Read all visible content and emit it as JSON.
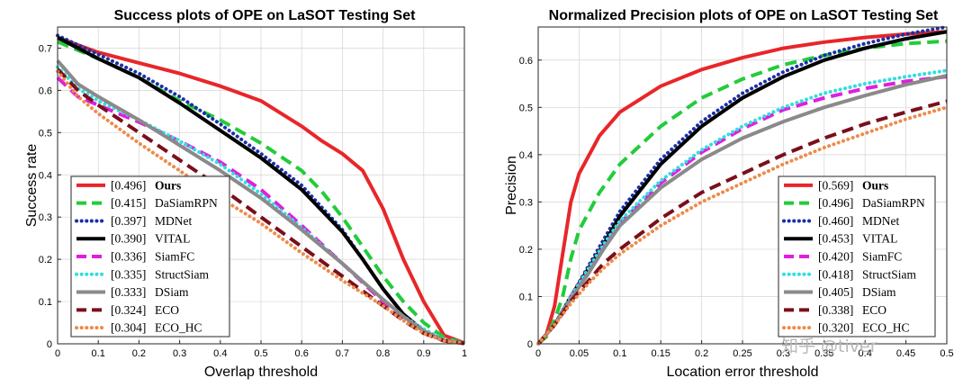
{
  "chart_data": [
    {
      "type": "line",
      "title": "Success plots of OPE on LaSOT Testing Set",
      "xlabel": "Overlap threshold",
      "ylabel": "Success rate",
      "xlim": [
        0,
        1
      ],
      "ylim": [
        0,
        0.75
      ],
      "xticks": [
        0,
        0.1,
        0.2,
        0.3,
        0.4,
        0.5,
        0.6,
        0.7,
        0.8,
        0.9,
        1
      ],
      "xtick_labels": [
        "0",
        "0.1",
        "0.2",
        "0.3",
        "0.4",
        "0.5",
        "0.6",
        "0.7",
        "0.8",
        "0.9",
        "1"
      ],
      "yticks": [
        0,
        0.1,
        0.2,
        0.3,
        0.4,
        0.5,
        0.6,
        0.7
      ],
      "ytick_labels": [
        "0",
        "0.1",
        "0.2",
        "0.3",
        "0.4",
        "0.5",
        "0.6",
        "0.7"
      ],
      "grid": true,
      "legend_position": "bottom-left",
      "series": [
        {
          "name": "Ours",
          "score": "[0.496]",
          "bold": true,
          "color": "#e8262a",
          "dash": "solid",
          "x": [
            0,
            0.1,
            0.2,
            0.3,
            0.4,
            0.5,
            0.6,
            0.65,
            0.7,
            0.75,
            0.8,
            0.85,
            0.9,
            0.95,
            1
          ],
          "y": [
            0.725,
            0.69,
            0.665,
            0.64,
            0.61,
            0.575,
            0.515,
            0.48,
            0.45,
            0.41,
            0.32,
            0.2,
            0.1,
            0.02,
            0.002
          ]
        },
        {
          "name": "DaSiamRPN",
          "score": "[0.415]",
          "bold": false,
          "color": "#22cc3a",
          "dash": "dash",
          "x": [
            0,
            0.1,
            0.2,
            0.3,
            0.4,
            0.5,
            0.6,
            0.65,
            0.7,
            0.75,
            0.8,
            0.85,
            0.9,
            0.95,
            1
          ],
          "y": [
            0.715,
            0.675,
            0.63,
            0.575,
            0.53,
            0.475,
            0.41,
            0.36,
            0.3,
            0.23,
            0.16,
            0.1,
            0.05,
            0.015,
            0.001
          ]
        },
        {
          "name": "MDNet",
          "score": "[0.397]",
          "bold": false,
          "color": "#1a2fa8",
          "dash": "dot",
          "x": [
            0,
            0.1,
            0.2,
            0.3,
            0.4,
            0.5,
            0.6,
            0.7,
            0.75,
            0.8,
            0.85,
            0.9,
            0.95,
            1
          ],
          "y": [
            0.73,
            0.685,
            0.64,
            0.585,
            0.52,
            0.45,
            0.375,
            0.27,
            0.2,
            0.13,
            0.07,
            0.03,
            0.007,
            0.001
          ]
        },
        {
          "name": "VITAL",
          "score": "[0.390]",
          "bold": false,
          "color": "#000000",
          "dash": "solid",
          "x": [
            0,
            0.1,
            0.2,
            0.3,
            0.4,
            0.5,
            0.6,
            0.7,
            0.75,
            0.8,
            0.85,
            0.9,
            0.95,
            1
          ],
          "y": [
            0.725,
            0.675,
            0.63,
            0.57,
            0.505,
            0.44,
            0.365,
            0.265,
            0.2,
            0.13,
            0.07,
            0.03,
            0.007,
            0.001
          ]
        },
        {
          "name": "SiamFC",
          "score": "[0.336]",
          "bold": false,
          "color": "#e01ee0",
          "dash": "dash",
          "x": [
            0,
            0.05,
            0.1,
            0.2,
            0.3,
            0.4,
            0.5,
            0.6,
            0.7,
            0.8,
            0.85,
            0.9,
            0.95,
            1
          ],
          "y": [
            0.63,
            0.585,
            0.565,
            0.525,
            0.48,
            0.43,
            0.365,
            0.28,
            0.19,
            0.1,
            0.06,
            0.03,
            0.008,
            0.001
          ]
        },
        {
          "name": "StructSiam",
          "score": "[0.335]",
          "bold": false,
          "color": "#33dede",
          "dash": "dot",
          "x": [
            0,
            0.05,
            0.1,
            0.2,
            0.3,
            0.4,
            0.5,
            0.6,
            0.7,
            0.8,
            0.85,
            0.9,
            0.95,
            1
          ],
          "y": [
            0.655,
            0.605,
            0.575,
            0.53,
            0.48,
            0.425,
            0.355,
            0.275,
            0.19,
            0.105,
            0.065,
            0.035,
            0.01,
            0.001
          ]
        },
        {
          "name": "DSiam",
          "score": "[0.333]",
          "bold": false,
          "color": "#8a8a8a",
          "dash": "solid",
          "x": [
            0,
            0.05,
            0.1,
            0.2,
            0.3,
            0.4,
            0.5,
            0.6,
            0.7,
            0.8,
            0.85,
            0.9,
            0.95,
            1
          ],
          "y": [
            0.67,
            0.615,
            0.585,
            0.53,
            0.47,
            0.41,
            0.345,
            0.27,
            0.19,
            0.105,
            0.065,
            0.03,
            0.008,
            0.001
          ]
        },
        {
          "name": "ECO",
          "score": "[0.324]",
          "bold": false,
          "color": "#7a0f1c",
          "dash": "dash",
          "x": [
            0,
            0.05,
            0.1,
            0.2,
            0.3,
            0.4,
            0.5,
            0.6,
            0.7,
            0.8,
            0.85,
            0.9,
            0.95,
            1
          ],
          "y": [
            0.65,
            0.6,
            0.565,
            0.5,
            0.435,
            0.37,
            0.3,
            0.23,
            0.16,
            0.09,
            0.055,
            0.025,
            0.007,
            0.001
          ]
        },
        {
          "name": "ECO_HC",
          "score": "[0.304]",
          "bold": false,
          "color": "#ee8a4a",
          "dash": "dot",
          "x": [
            0,
            0.05,
            0.1,
            0.2,
            0.3,
            0.4,
            0.5,
            0.6,
            0.7,
            0.8,
            0.85,
            0.9,
            0.95,
            1
          ],
          "y": [
            0.645,
            0.585,
            0.545,
            0.475,
            0.41,
            0.345,
            0.285,
            0.215,
            0.15,
            0.09,
            0.055,
            0.025,
            0.007,
            0.001
          ]
        }
      ]
    },
    {
      "type": "line",
      "title": "Normalized Precision plots of OPE on LaSOT Testing Set",
      "xlabel": "Location error threshold",
      "ylabel": "Precision",
      "xlim": [
        0,
        0.5
      ],
      "ylim": [
        0,
        0.67
      ],
      "xticks": [
        0,
        0.05,
        0.1,
        0.15,
        0.2,
        0.25,
        0.3,
        0.35,
        0.4,
        0.45,
        0.5
      ],
      "xtick_labels": [
        "0",
        "0.05",
        "0.1",
        "0.15",
        "0.2",
        "0.25",
        "0.3",
        "0.35",
        "0.4",
        "0.45",
        "0.5"
      ],
      "yticks": [
        0,
        0.1,
        0.2,
        0.3,
        0.4,
        0.5,
        0.6
      ],
      "ytick_labels": [
        "0",
        "0.1",
        "0.2",
        "0.3",
        "0.4",
        "0.5",
        "0.6"
      ],
      "grid": true,
      "legend_position": "bottom-right",
      "series": [
        {
          "name": "Ours",
          "score": "[0.569]",
          "bold": true,
          "color": "#e8262a",
          "dash": "solid",
          "x": [
            0,
            0.01,
            0.02,
            0.03,
            0.04,
            0.05,
            0.075,
            0.1,
            0.15,
            0.2,
            0.25,
            0.3,
            0.35,
            0.4,
            0.45,
            0.5
          ],
          "y": [
            0,
            0.02,
            0.08,
            0.19,
            0.3,
            0.36,
            0.44,
            0.49,
            0.545,
            0.58,
            0.605,
            0.625,
            0.638,
            0.648,
            0.655,
            0.66
          ]
        },
        {
          "name": "DaSiamRPN",
          "score": "[0.496]",
          "bold": false,
          "color": "#22cc3a",
          "dash": "dash",
          "x": [
            0,
            0.01,
            0.02,
            0.03,
            0.04,
            0.05,
            0.075,
            0.1,
            0.15,
            0.2,
            0.25,
            0.3,
            0.35,
            0.4,
            0.45,
            0.5
          ],
          "y": [
            0,
            0.015,
            0.05,
            0.1,
            0.18,
            0.24,
            0.32,
            0.38,
            0.46,
            0.52,
            0.56,
            0.59,
            0.61,
            0.625,
            0.635,
            0.64
          ]
        },
        {
          "name": "MDNet",
          "score": "[0.460]",
          "bold": false,
          "color": "#1a2fa8",
          "dash": "dot",
          "x": [
            0,
            0.02,
            0.04,
            0.06,
            0.08,
            0.1,
            0.15,
            0.2,
            0.25,
            0.3,
            0.35,
            0.4,
            0.45,
            0.5
          ],
          "y": [
            0,
            0.04,
            0.1,
            0.16,
            0.22,
            0.28,
            0.39,
            0.47,
            0.53,
            0.575,
            0.61,
            0.635,
            0.655,
            0.67
          ]
        },
        {
          "name": "VITAL",
          "score": "[0.453]",
          "bold": false,
          "color": "#000000",
          "dash": "solid",
          "x": [
            0,
            0.02,
            0.04,
            0.06,
            0.08,
            0.1,
            0.15,
            0.2,
            0.25,
            0.3,
            0.35,
            0.4,
            0.45,
            0.5
          ],
          "y": [
            0,
            0.04,
            0.1,
            0.155,
            0.21,
            0.27,
            0.38,
            0.46,
            0.52,
            0.565,
            0.6,
            0.625,
            0.645,
            0.66
          ]
        },
        {
          "name": "SiamFC",
          "score": "[0.420]",
          "bold": false,
          "color": "#e01ee0",
          "dash": "dash",
          "x": [
            0,
            0.02,
            0.04,
            0.06,
            0.08,
            0.1,
            0.15,
            0.2,
            0.25,
            0.3,
            0.35,
            0.4,
            0.45,
            0.5
          ],
          "y": [
            0,
            0.04,
            0.1,
            0.15,
            0.205,
            0.255,
            0.34,
            0.405,
            0.455,
            0.495,
            0.52,
            0.54,
            0.555,
            0.565
          ]
        },
        {
          "name": "StructSiam",
          "score": "[0.418]",
          "bold": false,
          "color": "#33dede",
          "dash": "dot",
          "x": [
            0,
            0.02,
            0.04,
            0.06,
            0.08,
            0.1,
            0.15,
            0.2,
            0.25,
            0.3,
            0.35,
            0.4,
            0.45,
            0.5
          ],
          "y": [
            0,
            0.04,
            0.1,
            0.155,
            0.21,
            0.26,
            0.345,
            0.41,
            0.46,
            0.5,
            0.53,
            0.55,
            0.565,
            0.578
          ]
        },
        {
          "name": "DSiam",
          "score": "[0.405]",
          "bold": false,
          "color": "#8a8a8a",
          "dash": "solid",
          "x": [
            0,
            0.02,
            0.04,
            0.06,
            0.08,
            0.1,
            0.15,
            0.2,
            0.25,
            0.3,
            0.35,
            0.4,
            0.45,
            0.5
          ],
          "y": [
            0,
            0.04,
            0.095,
            0.145,
            0.2,
            0.25,
            0.33,
            0.39,
            0.435,
            0.47,
            0.5,
            0.525,
            0.548,
            0.567
          ]
        },
        {
          "name": "ECO",
          "score": "[0.338]",
          "bold": false,
          "color": "#7a0f1c",
          "dash": "dash",
          "x": [
            0,
            0.02,
            0.04,
            0.06,
            0.08,
            0.1,
            0.15,
            0.2,
            0.25,
            0.3,
            0.35,
            0.4,
            0.45,
            0.5
          ],
          "y": [
            0,
            0.04,
            0.09,
            0.13,
            0.17,
            0.2,
            0.265,
            0.32,
            0.36,
            0.4,
            0.435,
            0.465,
            0.49,
            0.513
          ]
        },
        {
          "name": "ECO_HC",
          "score": "[0.320]",
          "bold": false,
          "color": "#ee8a4a",
          "dash": "dot",
          "x": [
            0,
            0.02,
            0.04,
            0.06,
            0.08,
            0.1,
            0.15,
            0.2,
            0.25,
            0.3,
            0.35,
            0.4,
            0.45,
            0.5
          ],
          "y": [
            0,
            0.04,
            0.085,
            0.125,
            0.16,
            0.19,
            0.25,
            0.3,
            0.34,
            0.38,
            0.415,
            0.445,
            0.475,
            0.5
          ]
        }
      ]
    }
  ],
  "watermark": "知乎 @tiver"
}
